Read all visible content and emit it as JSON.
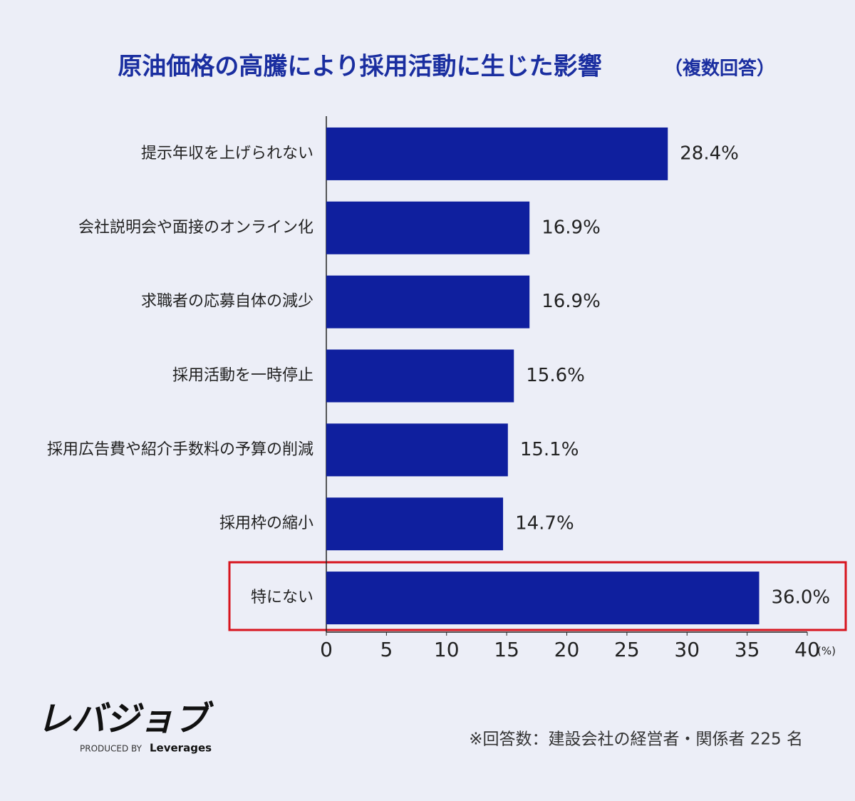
{
  "chart_data": {
    "type": "barh",
    "title": "原油価格の高騰により採用活動に生じた影響",
    "subtitle": "（複数回答）",
    "categories": [
      "提示年収を上げられない",
      "会社説明会や面接のオンライン化",
      "求職者の応募自体の減少",
      "採用活動を一時停止",
      "採用広告費や紹介手数料の予算の削減",
      "採用枠の縮小",
      "特にない"
    ],
    "values": [
      28.4,
      16.9,
      16.9,
      15.6,
      15.1,
      14.7,
      36.0
    ],
    "value_labels": [
      "28.4%",
      "16.9%",
      "16.9%",
      "15.6%",
      "15.1%",
      "14.7%",
      "36.0%"
    ],
    "color": "#0f1f9e",
    "xlim": [
      0,
      40
    ],
    "xticks": [
      0,
      5,
      10,
      15,
      20,
      25,
      30,
      35,
      40
    ],
    "x_unit": "(%)",
    "grid": false
  },
  "footnote": "※回答数：建設会社の経営者・関係者 225 名",
  "logo": {
    "name": "レバジョブ",
    "produced_by": "PRODUCED BY",
    "brand": "Leverages"
  }
}
